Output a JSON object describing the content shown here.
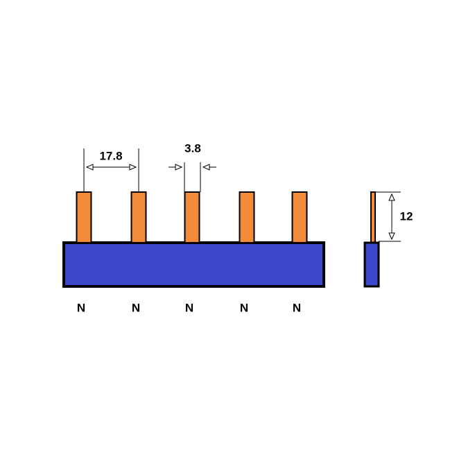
{
  "dimensions": {
    "pin_pitch": 17.8,
    "pin_width": 3.8,
    "pin_height": 12
  },
  "pins": [
    {
      "label": "N"
    },
    {
      "label": "N"
    },
    {
      "label": "N"
    },
    {
      "label": "N"
    },
    {
      "label": "N"
    }
  ]
}
